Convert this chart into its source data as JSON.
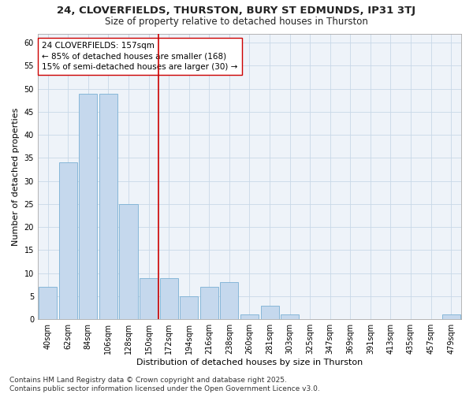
{
  "title_line1": "24, CLOVERFIELDS, THURSTON, BURY ST EDMUNDS, IP31 3TJ",
  "title_line2": "Size of property relative to detached houses in Thurston",
  "xlabel": "Distribution of detached houses by size in Thurston",
  "ylabel": "Number of detached properties",
  "categories": [
    "40sqm",
    "62sqm",
    "84sqm",
    "106sqm",
    "128sqm",
    "150sqm",
    "172sqm",
    "194sqm",
    "216sqm",
    "238sqm",
    "260sqm",
    "281sqm",
    "303sqm",
    "325sqm",
    "347sqm",
    "369sqm",
    "391sqm",
    "413sqm",
    "435sqm",
    "457sqm",
    "479sqm"
  ],
  "values": [
    7,
    34,
    49,
    49,
    25,
    9,
    9,
    5,
    7,
    8,
    1,
    3,
    1,
    0,
    0,
    0,
    0,
    0,
    0,
    0,
    1
  ],
  "bar_color": "#c5d8ed",
  "bar_edge_color": "#7ab0d4",
  "bar_edge_width": 0.6,
  "grid_color": "#c8d8e8",
  "bg_color": "#eef3f9",
  "vline_x": 5.5,
  "vline_color": "#cc0000",
  "annotation_text": "24 CLOVERFIELDS: 157sqm\n← 85% of detached houses are smaller (168)\n15% of semi-detached houses are larger (30) →",
  "annotation_box_color": "#ffffff",
  "annotation_box_edge": "#cc0000",
  "ylim": [
    0,
    62
  ],
  "yticks": [
    0,
    5,
    10,
    15,
    20,
    25,
    30,
    35,
    40,
    45,
    50,
    55,
    60
  ],
  "footnote": "Contains HM Land Registry data © Crown copyright and database right 2025.\nContains public sector information licensed under the Open Government Licence v3.0.",
  "title_fontsize": 9.5,
  "subtitle_fontsize": 8.5,
  "axis_label_fontsize": 8,
  "tick_fontsize": 7,
  "annotation_fontsize": 7.5,
  "footnote_fontsize": 6.5
}
